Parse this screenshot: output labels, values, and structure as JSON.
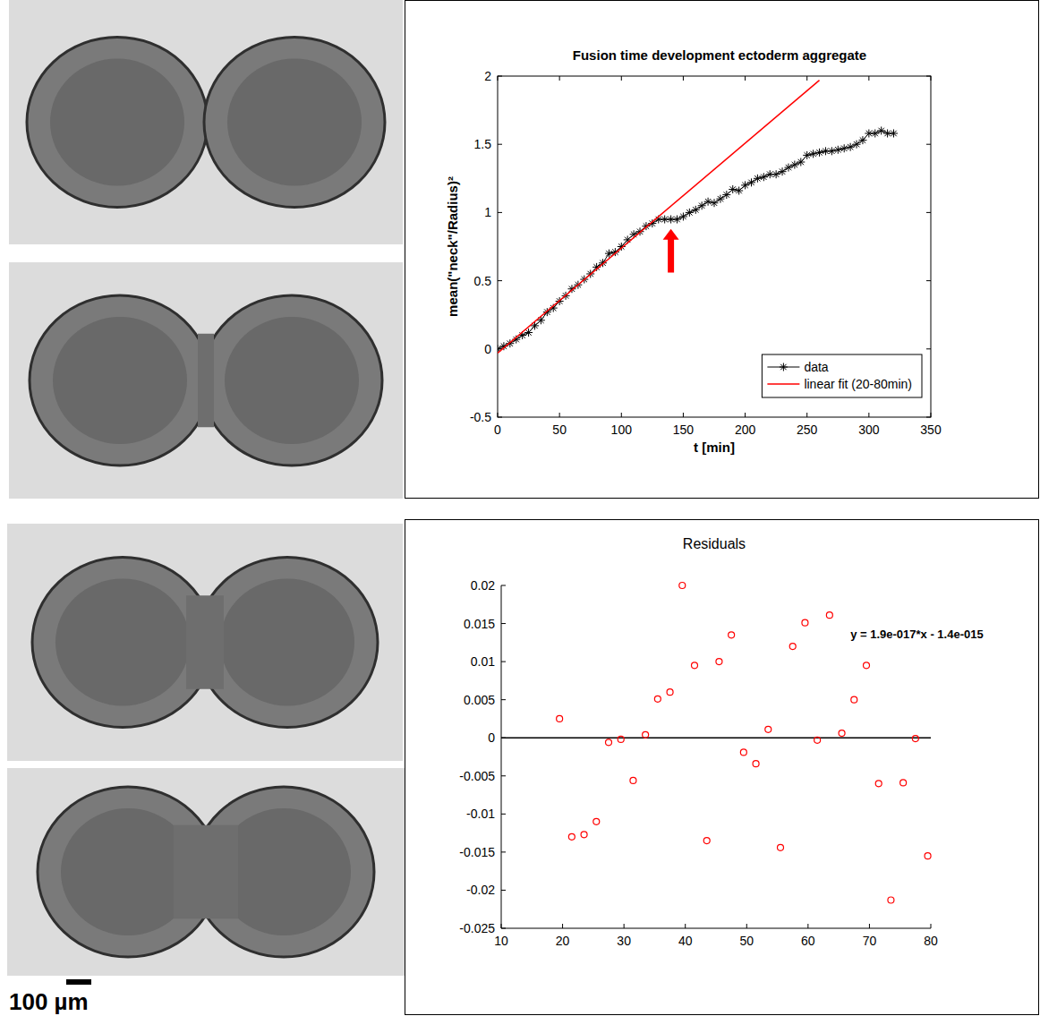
{
  "chart_data": [
    {
      "type": "line",
      "title": "Fusion time development ectoderm aggregate",
      "x_label": "t [min]",
      "y_label": "mean(\"neck\"/Radius)²",
      "xlim": [
        0,
        350
      ],
      "xticks": [
        0,
        50,
        100,
        150,
        200,
        250,
        300,
        350
      ],
      "ylim": [
        -0.5,
        2
      ],
      "yticks": [
        -0.5,
        0,
        0.5,
        1,
        1.5,
        2
      ],
      "grid": false,
      "legend": "lower right",
      "series": [
        {
          "name": "data",
          "color": "#000000",
          "marker": "asterisk",
          "line_style": "solid",
          "x": [
            0,
            5,
            10,
            15,
            20,
            25,
            30,
            35,
            40,
            45,
            50,
            55,
            60,
            65,
            70,
            75,
            80,
            85,
            90,
            95,
            100,
            105,
            110,
            115,
            120,
            125,
            130,
            135,
            140,
            145,
            150,
            155,
            160,
            165,
            170,
            175,
            180,
            185,
            190,
            195,
            200,
            205,
            210,
            215,
            220,
            225,
            230,
            235,
            240,
            245,
            250,
            255,
            260,
            265,
            270,
            275,
            280,
            285,
            290,
            295,
            300,
            305,
            310,
            315,
            320
          ],
          "values": [
            0.0,
            0.02,
            0.04,
            0.07,
            0.1,
            0.12,
            0.17,
            0.21,
            0.27,
            0.3,
            0.35,
            0.39,
            0.44,
            0.47,
            0.51,
            0.55,
            0.6,
            0.63,
            0.7,
            0.71,
            0.75,
            0.8,
            0.84,
            0.86,
            0.9,
            0.92,
            0.95,
            0.95,
            0.95,
            0.95,
            0.97,
            1.0,
            1.02,
            1.05,
            1.08,
            1.07,
            1.1,
            1.13,
            1.17,
            1.16,
            1.2,
            1.22,
            1.25,
            1.26,
            1.28,
            1.28,
            1.3,
            1.33,
            1.35,
            1.37,
            1.42,
            1.43,
            1.44,
            1.45,
            1.45,
            1.46,
            1.47,
            1.48,
            1.5,
            1.53,
            1.58,
            1.58,
            1.6,
            1.58,
            1.58
          ]
        },
        {
          "name": "linear fit (20-80min)",
          "color": "#ff0000",
          "marker": "none",
          "line_style": "solid",
          "x": [
            0,
            260
          ],
          "values": [
            -0.03,
            1.97
          ]
        }
      ],
      "annotations": [
        {
          "type": "arrow",
          "x": 140,
          "y_from": 0.56,
          "y_to": 0.88,
          "color": "#ff0000"
        }
      ]
    },
    {
      "type": "scatter",
      "title": "Residuals",
      "xlim": [
        10,
        80
      ],
      "xticks": [
        10,
        20,
        30,
        40,
        50,
        60,
        70,
        80
      ],
      "ylim": [
        -0.025,
        0.02
      ],
      "yticks": [
        -0.025,
        -0.02,
        -0.015,
        -0.01,
        -0.005,
        0,
        0.005,
        0.01,
        0.015,
        0.02
      ],
      "grid": false,
      "color": "#ff0000",
      "marker": "open-circle",
      "x": [
        19.5,
        21.5,
        23.5,
        25.5,
        27.5,
        29.5,
        31.5,
        33.5,
        35.5,
        37.5,
        39.5,
        41.5,
        43.5,
        45.5,
        47.5,
        49.5,
        51.5,
        53.5,
        55.5,
        57.5,
        59.5,
        61.5,
        63.5,
        65.5,
        67.5,
        69.5,
        71.5,
        73.5,
        75.5,
        77.5,
        79.5
      ],
      "values": [
        0.0025,
        -0.013,
        -0.0127,
        -0.011,
        -0.0006,
        -0.0002,
        -0.0056,
        0.0004,
        0.0051,
        0.006,
        0.02,
        0.0095,
        -0.0135,
        0.01,
        0.0135,
        -0.0019,
        -0.0034,
        0.0011,
        -0.0144,
        0.012,
        0.0151,
        -0.0003,
        0.0161,
        0.0006,
        0.005,
        0.0095,
        -0.006,
        -0.0213,
        -0.0059,
        -0.0001,
        -0.0155
      ],
      "hline": 0,
      "annotations": [
        {
          "text": "y = 1.9e-017*x - 1.4e-015",
          "x": 66.9,
          "y": 0.0137
        }
      ]
    }
  ],
  "scale_bar": {
    "label": "100 µm"
  }
}
